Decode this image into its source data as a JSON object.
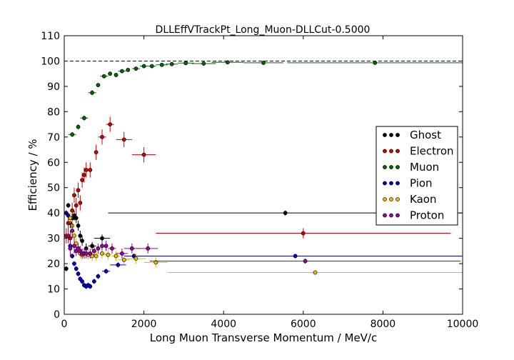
{
  "chart_data": {
    "type": "scatter",
    "title": "DLLEffVTrackPt_Long_Muon-DLLCut-0.5000",
    "xlabel": "Long Muon Transverse Momentum / MeV/c",
    "ylabel": "Efficiency / %",
    "xlim": [
      0,
      10000
    ],
    "ylim": [
      0,
      110
    ],
    "xticks": [
      0,
      2000,
      4000,
      6000,
      8000,
      10000
    ],
    "yticks": [
      0,
      10,
      20,
      30,
      40,
      50,
      60,
      70,
      80,
      90,
      100,
      110
    ],
    "xtick_labels": [
      "0",
      "2000",
      "4000",
      "6000",
      "8000",
      "10000"
    ],
    "ytick_labels": [
      "0",
      "10",
      "20",
      "30",
      "40",
      "50",
      "60",
      "70",
      "80",
      "90",
      "100",
      "110"
    ],
    "reference_line": 100,
    "grid": false,
    "legend_position": "right",
    "series": [
      {
        "name": "Ghost",
        "color": "#000000",
        "points": [
          [
            50,
            18,
            50,
            1
          ],
          [
            100,
            43,
            50,
            1
          ],
          [
            150,
            36,
            50,
            2
          ],
          [
            200,
            38,
            50,
            2
          ],
          [
            250,
            39,
            50,
            2
          ],
          [
            300,
            38,
            50,
            2
          ],
          [
            350,
            35,
            50,
            2
          ],
          [
            400,
            31,
            50,
            2
          ],
          [
            450,
            29,
            50,
            2
          ],
          [
            550,
            26,
            50,
            2
          ],
          [
            700,
            27,
            100,
            1.5
          ],
          [
            950,
            30,
            200,
            1.5
          ],
          [
            5550,
            40,
            4450,
            1
          ]
        ]
      },
      {
        "name": "Electron",
        "color": "#cc0000",
        "points": [
          [
            50,
            31,
            50,
            3
          ],
          [
            100,
            36,
            50,
            3
          ],
          [
            150,
            30,
            50,
            3
          ],
          [
            200,
            41,
            50,
            3
          ],
          [
            250,
            47,
            50,
            3
          ],
          [
            300,
            43,
            50,
            3
          ],
          [
            350,
            49,
            50,
            3
          ],
          [
            400,
            44,
            50,
            3
          ],
          [
            450,
            53,
            50,
            3
          ],
          [
            500,
            55,
            50,
            3
          ],
          [
            550,
            57,
            50,
            3
          ],
          [
            650,
            57,
            50,
            3
          ],
          [
            800,
            64,
            50,
            3
          ],
          [
            950,
            70,
            100,
            3
          ],
          [
            1150,
            75,
            100,
            3
          ],
          [
            1500,
            69,
            200,
            3
          ],
          [
            2000,
            63,
            300,
            3
          ],
          [
            6000,
            32,
            3700,
            2
          ]
        ]
      },
      {
        "name": "Muon",
        "color": "#006600",
        "points": [
          [
            200,
            71,
            100,
            1
          ],
          [
            350,
            74,
            50,
            1
          ],
          [
            500,
            77.5,
            100,
            1
          ],
          [
            700,
            87.5,
            100,
            1
          ],
          [
            850,
            90.5,
            50,
            0.8
          ],
          [
            1000,
            94,
            100,
            0.8
          ],
          [
            1150,
            95,
            50,
            0.8
          ],
          [
            1300,
            94.5,
            50,
            0.8
          ],
          [
            1450,
            96,
            100,
            0.8
          ],
          [
            1600,
            96.5,
            50,
            0.8
          ],
          [
            1800,
            97,
            100,
            0.8
          ],
          [
            2000,
            98,
            100,
            0.5
          ],
          [
            2200,
            98,
            100,
            0.5
          ],
          [
            2450,
            98.5,
            150,
            0.5
          ],
          [
            2700,
            98.8,
            150,
            0.5
          ],
          [
            3050,
            99.2,
            200,
            0.5
          ],
          [
            3500,
            99,
            300,
            0.5
          ],
          [
            4100,
            99.5,
            400,
            0.5
          ],
          [
            5000,
            99.3,
            500,
            0.5
          ],
          [
            7800,
            99.3,
            2200,
            0.5
          ]
        ]
      },
      {
        "name": "Pion",
        "color": "#0000cc",
        "points": [
          [
            50,
            40,
            50,
            1
          ],
          [
            100,
            39,
            50,
            1
          ],
          [
            150,
            27,
            50,
            1
          ],
          [
            200,
            23,
            50,
            1
          ],
          [
            250,
            20,
            50,
            1
          ],
          [
            300,
            18,
            50,
            1
          ],
          [
            350,
            16,
            50,
            1
          ],
          [
            400,
            14,
            50,
            1
          ],
          [
            450,
            13,
            50,
            1
          ],
          [
            500,
            11.5,
            50,
            1
          ],
          [
            550,
            11,
            50,
            1
          ],
          [
            600,
            11.5,
            50,
            1
          ],
          [
            650,
            11,
            50,
            1
          ],
          [
            750,
            13,
            50,
            1
          ],
          [
            850,
            15,
            50,
            1
          ],
          [
            1050,
            17,
            100,
            1
          ],
          [
            1350,
            19.5,
            200,
            1
          ],
          [
            1750,
            23,
            250,
            1
          ],
          [
            5800,
            23,
            4200,
            0.8
          ]
        ]
      },
      {
        "name": "Kaon",
        "color": "#e6b800",
        "points": [
          [
            150,
            38,
            50,
            2
          ],
          [
            200,
            35,
            50,
            2
          ],
          [
            250,
            31,
            50,
            2
          ],
          [
            300,
            28,
            50,
            2
          ],
          [
            350,
            26,
            50,
            2
          ],
          [
            400,
            24,
            50,
            2
          ],
          [
            450,
            23.5,
            50,
            2
          ],
          [
            500,
            24,
            50,
            2
          ],
          [
            600,
            23.5,
            50,
            2
          ],
          [
            700,
            23,
            50,
            2
          ],
          [
            800,
            23,
            50,
            2
          ],
          [
            950,
            24,
            100,
            2
          ],
          [
            1100,
            23.5,
            100,
            2
          ],
          [
            1300,
            23,
            100,
            2
          ],
          [
            1500,
            21.5,
            150,
            2
          ],
          [
            1800,
            22,
            250,
            2
          ],
          [
            2300,
            20.5,
            300,
            2
          ],
          [
            6300,
            16.5,
            3700,
            1
          ]
        ]
      },
      {
        "name": "Proton",
        "color": "#990099",
        "points": [
          [
            100,
            31,
            50,
            3
          ],
          [
            150,
            26,
            50,
            3
          ],
          [
            200,
            33,
            50,
            3
          ],
          [
            250,
            27,
            50,
            3
          ],
          [
            300,
            25,
            50,
            2
          ],
          [
            350,
            26,
            50,
            2
          ],
          [
            400,
            25,
            50,
            2
          ],
          [
            450,
            24,
            50,
            2
          ],
          [
            500,
            24,
            50,
            2
          ],
          [
            550,
            24,
            50,
            2
          ],
          [
            650,
            24,
            50,
            2
          ],
          [
            750,
            25,
            50,
            2
          ],
          [
            850,
            26,
            50,
            2
          ],
          [
            950,
            27,
            50,
            2
          ],
          [
            1050,
            27,
            50,
            2
          ],
          [
            1200,
            26,
            100,
            2
          ],
          [
            1450,
            24,
            150,
            2
          ],
          [
            1700,
            26,
            200,
            2
          ],
          [
            2100,
            26,
            250,
            2
          ],
          [
            6050,
            21,
            3900,
            1
          ]
        ]
      }
    ]
  }
}
